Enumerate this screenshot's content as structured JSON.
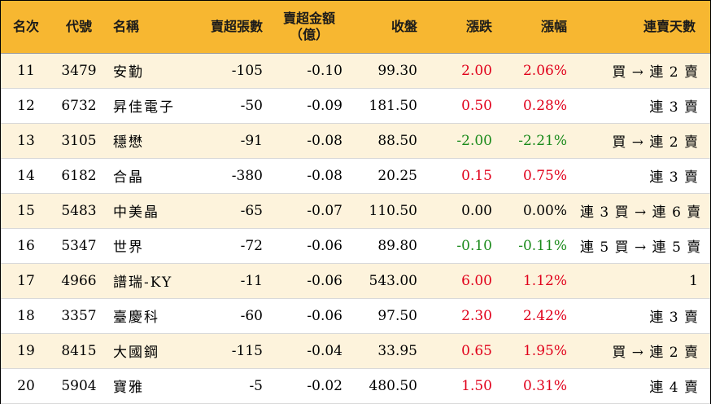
{
  "headers": {
    "rank": "名次",
    "code": "代號",
    "name": "名稱",
    "sell_lots": "賣超張數",
    "sell_amount": "賣超金額\n（億）",
    "close": "收盤",
    "change": "漲跌",
    "change_pct": "漲幅",
    "streak": "連賣天數"
  },
  "colors": {
    "header_bg": "#f7b731",
    "row_alt_bg": "#fdf3dc",
    "up": "#e0001b",
    "down": "#1b8a1b"
  },
  "rows": [
    {
      "rank": "11",
      "code": "3479",
      "name": "安勤",
      "sell_lots": "-105",
      "sell_amount": "-0.10",
      "close": "99.30",
      "change": "2.00",
      "change_pct": "2.06%",
      "dir": "up",
      "streak": "買 → 連 2 賣"
    },
    {
      "rank": "12",
      "code": "6732",
      "name": "昇佳電子",
      "sell_lots": "-50",
      "sell_amount": "-0.09",
      "close": "181.50",
      "change": "0.50",
      "change_pct": "0.28%",
      "dir": "up",
      "streak": "連 3 賣"
    },
    {
      "rank": "13",
      "code": "3105",
      "name": "穩懋",
      "sell_lots": "-91",
      "sell_amount": "-0.08",
      "close": "88.50",
      "change": "-2.00",
      "change_pct": "-2.21%",
      "dir": "down",
      "streak": "買 → 連 2 賣"
    },
    {
      "rank": "14",
      "code": "6182",
      "name": "合晶",
      "sell_lots": "-380",
      "sell_amount": "-0.08",
      "close": "20.25",
      "change": "0.15",
      "change_pct": "0.75%",
      "dir": "up",
      "streak": "連 3 賣"
    },
    {
      "rank": "15",
      "code": "5483",
      "name": "中美晶",
      "sell_lots": "-65",
      "sell_amount": "-0.07",
      "close": "110.50",
      "change": "0.00",
      "change_pct": "0.00%",
      "dir": "flat",
      "streak": "連 3 買 → 連 6 賣"
    },
    {
      "rank": "16",
      "code": "5347",
      "name": "世界",
      "sell_lots": "-72",
      "sell_amount": "-0.06",
      "close": "89.80",
      "change": "-0.10",
      "change_pct": "-0.11%",
      "dir": "down",
      "streak": "連 5 買 → 連 5 賣"
    },
    {
      "rank": "17",
      "code": "4966",
      "name": "譜瑞-KY",
      "sell_lots": "-11",
      "sell_amount": "-0.06",
      "close": "543.00",
      "change": "6.00",
      "change_pct": "1.12%",
      "dir": "up",
      "streak": "1"
    },
    {
      "rank": "18",
      "code": "3357",
      "name": "臺慶科",
      "sell_lots": "-60",
      "sell_amount": "-0.06",
      "close": "97.50",
      "change": "2.30",
      "change_pct": "2.42%",
      "dir": "up",
      "streak": "連 3 賣"
    },
    {
      "rank": "19",
      "code": "8415",
      "name": "大國鋼",
      "sell_lots": "-115",
      "sell_amount": "-0.04",
      "close": "33.95",
      "change": "0.65",
      "change_pct": "1.95%",
      "dir": "up",
      "streak": "買 → 連 2 賣"
    },
    {
      "rank": "20",
      "code": "5904",
      "name": "寶雅",
      "sell_lots": "-5",
      "sell_amount": "-0.02",
      "close": "480.50",
      "change": "1.50",
      "change_pct": "0.31%",
      "dir": "up",
      "streak": "連 4 賣"
    }
  ]
}
